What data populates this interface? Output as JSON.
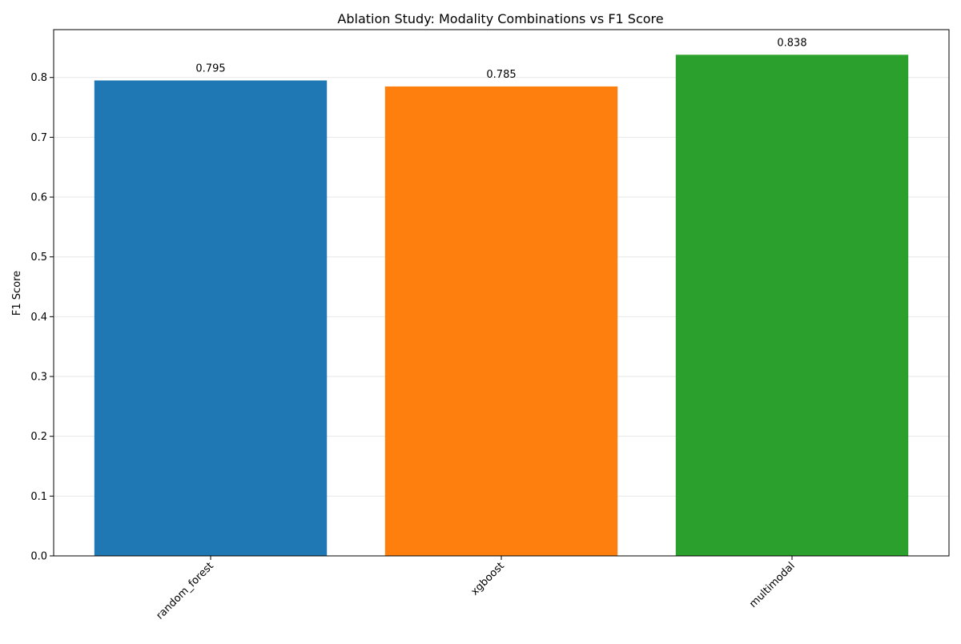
{
  "chart_data": {
    "type": "bar",
    "title": "Ablation Study: Modality Combinations vs F1 Score",
    "xlabel": "",
    "ylabel": "F1 Score",
    "categories": [
      "random_forest",
      "xgboost",
      "multimodal"
    ],
    "values": [
      0.795,
      0.785,
      0.838
    ],
    "data_labels": [
      "0.795",
      "0.785",
      "0.838"
    ],
    "colors": [
      "#1f77b4",
      "#ff7f0e",
      "#2ca02c"
    ],
    "ylim": [
      0,
      0.88
    ],
    "yticks": [
      0.0,
      0.1,
      0.2,
      0.3,
      0.4,
      0.5,
      0.6,
      0.7,
      0.8
    ],
    "ytick_labels": [
      "0.0",
      "0.1",
      "0.2",
      "0.3",
      "0.4",
      "0.5",
      "0.6",
      "0.7",
      "0.8"
    ],
    "grid": "horizontal",
    "legend": "none",
    "xtick_rotation": 45
  }
}
